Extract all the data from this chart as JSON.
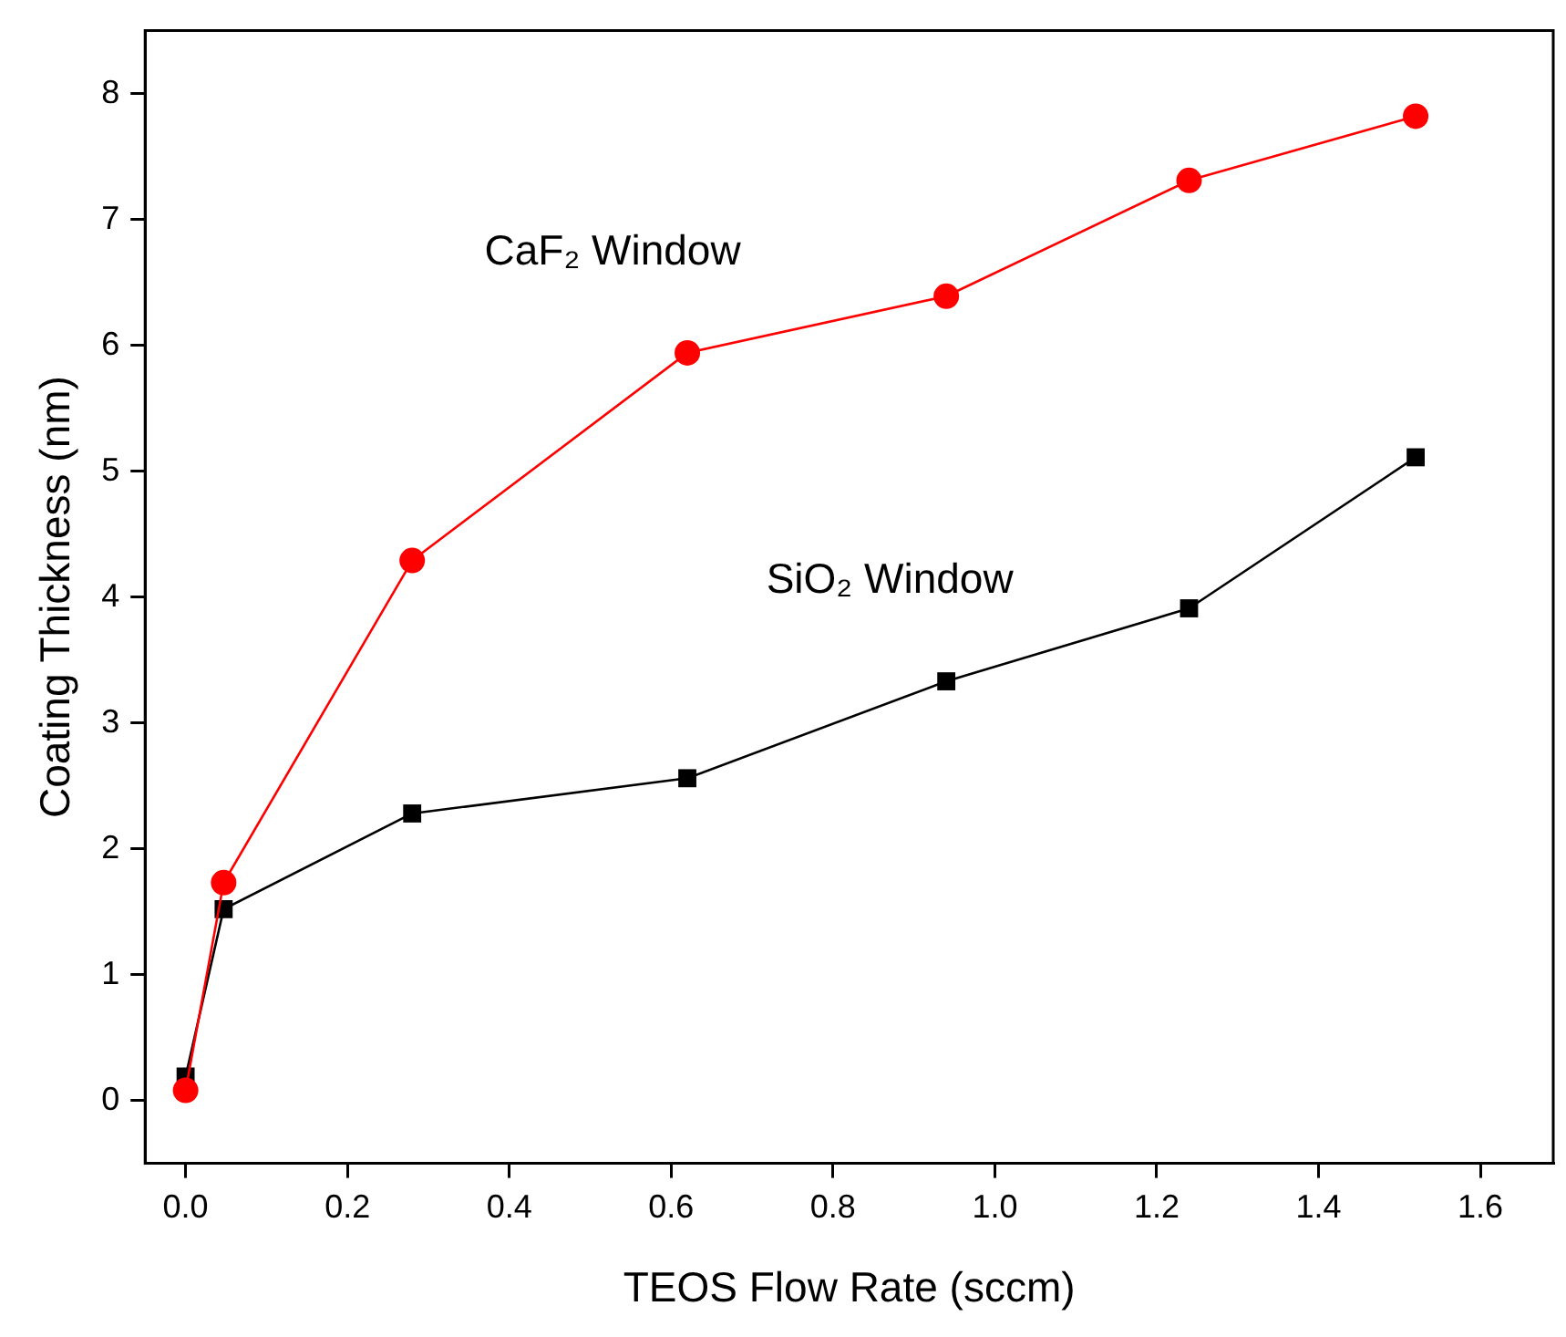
{
  "chart_data": {
    "type": "line",
    "xlabel": "TEOS Flow Rate (sccm)",
    "ylabel": "Coating Thickness (nm)",
    "xlim": [
      -0.05,
      1.69
    ],
    "ylim": [
      -0.5,
      8.5
    ],
    "xticks": [
      {
        "value": 0,
        "label": "0.0"
      },
      0.2,
      0.4,
      0.6,
      0.8,
      {
        "value": 1,
        "label": "1.0"
      },
      1.2,
      1.4,
      1.6
    ],
    "yticks": [
      0,
      1,
      2,
      3,
      4,
      5,
      6,
      7,
      8
    ],
    "grid": false,
    "legend": false,
    "line_style": "solid",
    "series": [
      {
        "name": "CaF₂ Window",
        "color": "#ff0000",
        "marker": "circle",
        "x": [
          0.0,
          0.047,
          0.28,
          0.62,
          0.94,
          1.24,
          1.52
        ],
        "values": [
          0.08,
          1.73,
          4.29,
          5.94,
          6.39,
          7.31,
          7.82
        ]
      },
      {
        "name": "SiO₂ Window",
        "color": "#000000",
        "marker": "square",
        "x": [
          0.0,
          0.047,
          0.28,
          0.62,
          0.94,
          1.24,
          1.52
        ],
        "values": [
          0.19,
          1.52,
          2.28,
          2.56,
          3.33,
          3.91,
          5.11
        ]
      }
    ]
  }
}
